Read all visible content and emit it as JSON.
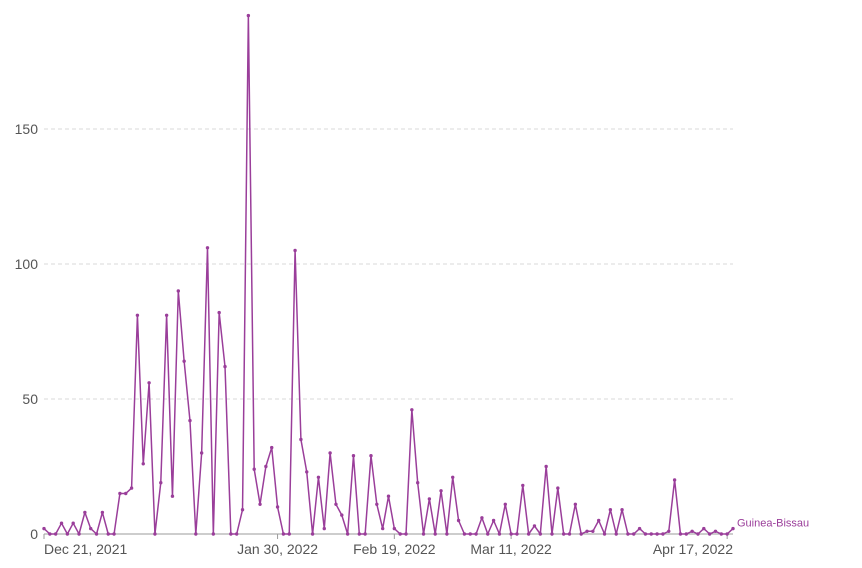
{
  "chart_data": {
    "type": "line",
    "title": "",
    "xlabel": "",
    "ylabel": "",
    "ylim": [
      0,
      190
    ],
    "y_ticks": [
      0,
      50,
      100,
      150
    ],
    "x_ticks": [
      {
        "label": "Dec 21, 2021",
        "day": 0
      },
      {
        "label": "Jan 30, 2022",
        "day": 40
      },
      {
        "label": "Feb 19, 2022",
        "day": 60
      },
      {
        "label": "Mar 11, 2022",
        "day": 80
      },
      {
        "label": "Apr 17, 2022",
        "day": 117
      }
    ],
    "grid": true,
    "legend": "inline-right",
    "color": "#9a3e9a",
    "series": [
      {
        "name": "Guinea-Bissau",
        "values": [
          2,
          0,
          0,
          4,
          0,
          4,
          0,
          8,
          2,
          0,
          8,
          0,
          0,
          15,
          15,
          17,
          81,
          26,
          56,
          0,
          19,
          81,
          14,
          90,
          64,
          42,
          0,
          30,
          106,
          0,
          82,
          62,
          0,
          0,
          9,
          192,
          24,
          11,
          25,
          32,
          10,
          0,
          0,
          105,
          35,
          23,
          0,
          21,
          2,
          30,
          11,
          7,
          0,
          29,
          0,
          0,
          29,
          11,
          2,
          14,
          2,
          0,
          0,
          46,
          19,
          0,
          13,
          0,
          16,
          0,
          21,
          5,
          0,
          0,
          0,
          6,
          0,
          5,
          0,
          11,
          0,
          0,
          18,
          0,
          3,
          0,
          25,
          0,
          17,
          0,
          0,
          11,
          0,
          1,
          1,
          5,
          0,
          9,
          0,
          9,
          0,
          0,
          2,
          0,
          0,
          0,
          0,
          1,
          20,
          0,
          0,
          1,
          0,
          2,
          0,
          1,
          0,
          0,
          2
        ]
      }
    ]
  }
}
